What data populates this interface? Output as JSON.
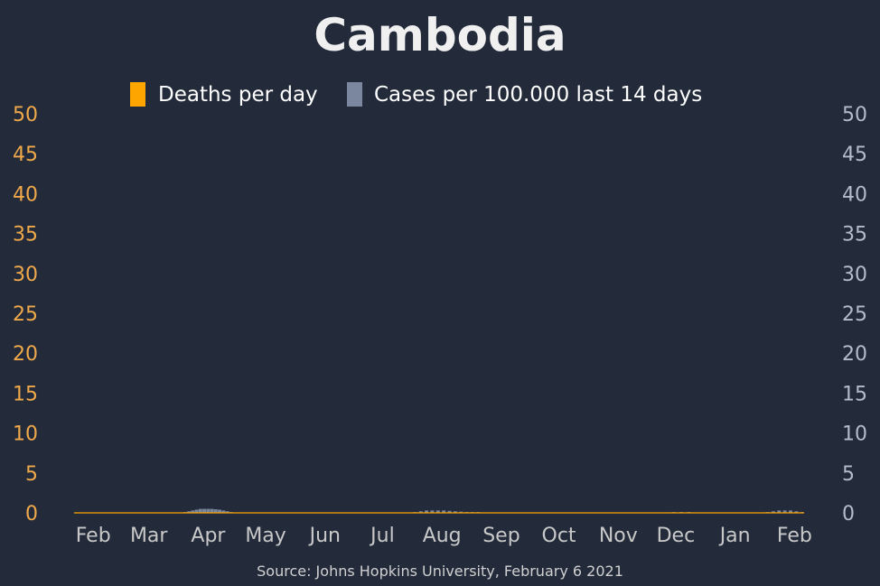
{
  "colors": {
    "background": "#232b3b",
    "deaths": "#ffa500",
    "cases": "#7a879e",
    "title": "#f0f0f0",
    "legend_text": "#ffffff",
    "left_axis": "#f0a94a",
    "right_axis": "#b3bccb",
    "x_axis": "#c8c8c8",
    "source": "#d0d0d0"
  },
  "chart_data": {
    "type": "bar",
    "title": "Cambodia",
    "source": "Source: Johns Hopkins University, February 6 2021",
    "legend_placement": "top",
    "grid": false,
    "x_ticks": [
      "Feb",
      "Mar",
      "Apr",
      "May",
      "Jun",
      "Jul",
      "Aug",
      "Sep",
      "Oct",
      "Nov",
      "Dec",
      "Jan",
      "Feb"
    ],
    "x_tick_dates": [
      "2020-02-01",
      "2020-03-01",
      "2020-04-01",
      "2020-05-01",
      "2020-06-01",
      "2020-07-01",
      "2020-08-01",
      "2020-09-01",
      "2020-10-01",
      "2020-11-01",
      "2020-12-01",
      "2021-01-01",
      "2021-02-01"
    ],
    "xlim": [
      "2020-01-22",
      "2021-02-06"
    ],
    "y_left": {
      "ticks": [
        0,
        5,
        10,
        15,
        20,
        25,
        30,
        35,
        40,
        45,
        50
      ],
      "ylim": [
        0,
        50
      ]
    },
    "y_right": {
      "ticks": [
        0,
        5,
        10,
        15,
        20,
        25,
        30,
        35,
        40,
        45,
        50
      ],
      "ylim": [
        0,
        50
      ]
    },
    "series": [
      {
        "name": "Deaths per day",
        "axis": "left",
        "color": "#ffa500",
        "points": []
      },
      {
        "name": "Cases per 100.000 last 14 days",
        "axis": "right",
        "color": "#7a879e",
        "points": [
          [
            "2020-03-20",
            0.1
          ],
          [
            "2020-03-22",
            0.2
          ],
          [
            "2020-03-24",
            0.3
          ],
          [
            "2020-03-26",
            0.4
          ],
          [
            "2020-03-28",
            0.5
          ],
          [
            "2020-03-30",
            0.5
          ],
          [
            "2020-04-01",
            0.5
          ],
          [
            "2020-04-03",
            0.5
          ],
          [
            "2020-04-05",
            0.45
          ],
          [
            "2020-04-07",
            0.4
          ],
          [
            "2020-04-09",
            0.3
          ],
          [
            "2020-04-11",
            0.2
          ],
          [
            "2020-04-13",
            0.1
          ],
          [
            "2020-04-15",
            0.05
          ],
          [
            "2020-07-18",
            0.1
          ],
          [
            "2020-07-21",
            0.2
          ],
          [
            "2020-07-24",
            0.3
          ],
          [
            "2020-07-27",
            0.3
          ],
          [
            "2020-07-30",
            0.3
          ],
          [
            "2020-08-02",
            0.3
          ],
          [
            "2020-08-05",
            0.25
          ],
          [
            "2020-08-08",
            0.2
          ],
          [
            "2020-08-11",
            0.15
          ],
          [
            "2020-08-14",
            0.1
          ],
          [
            "2020-08-17",
            0.1
          ],
          [
            "2020-08-20",
            0.1
          ],
          [
            "2020-08-24",
            0.05
          ],
          [
            "2020-08-28",
            0.05
          ],
          [
            "2020-11-26",
            0.05
          ],
          [
            "2020-11-30",
            0.1
          ],
          [
            "2020-12-04",
            0.1
          ],
          [
            "2020-12-08",
            0.1
          ],
          [
            "2020-12-12",
            0.05
          ],
          [
            "2021-01-18",
            0.1
          ],
          [
            "2021-01-21",
            0.2
          ],
          [
            "2021-01-24",
            0.3
          ],
          [
            "2021-01-27",
            0.3
          ],
          [
            "2021-01-30",
            0.3
          ],
          [
            "2021-02-02",
            0.2
          ],
          [
            "2021-02-05",
            0.1
          ]
        ]
      }
    ]
  }
}
